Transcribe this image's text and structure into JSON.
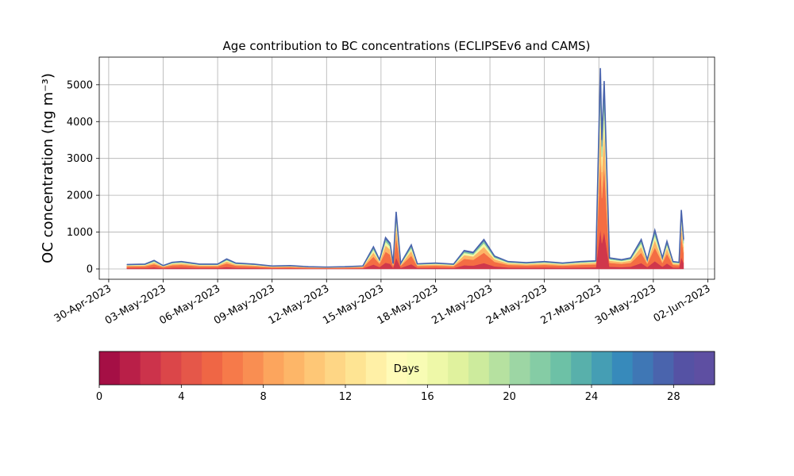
{
  "chart_data": {
    "type": "stacked_area",
    "title": "Age contribution to BC concentrations (ECLIPSEv6 and CAMS)",
    "y_label": "OC concentration (ng m⁻³)",
    "x": [
      "2023-05-01T00:00",
      "2023-05-02T00:00",
      "2023-05-02T12:00",
      "2023-05-03T00:00",
      "2023-05-03T12:00",
      "2023-05-04T00:00",
      "2023-05-05T00:00",
      "2023-05-06T00:00",
      "2023-05-06T12:00",
      "2023-05-07T00:00",
      "2023-05-08T00:00",
      "2023-05-09T00:00",
      "2023-05-10T00:00",
      "2023-05-11T00:00",
      "2023-05-12T00:00",
      "2023-05-13T00:00",
      "2023-05-14T00:00",
      "2023-05-14T14:00",
      "2023-05-14T22:00",
      "2023-05-15T06:00",
      "2023-05-15T12:00",
      "2023-05-15T16:00",
      "2023-05-15T20:00",
      "2023-05-16T02:00",
      "2023-05-16T16:00",
      "2023-05-17T00:00",
      "2023-05-18T00:00",
      "2023-05-19T00:00",
      "2023-05-19T14:00",
      "2023-05-20T02:00",
      "2023-05-20T16:00",
      "2023-05-21T06:00",
      "2023-05-22T00:00",
      "2023-05-23T00:00",
      "2023-05-24T00:00",
      "2023-05-25T00:00",
      "2023-05-26T00:00",
      "2023-05-26T20:00",
      "2023-05-27T02:00",
      "2023-05-27T04:00",
      "2023-05-27T07:00",
      "2023-05-27T14:00",
      "2023-05-28T06:00",
      "2023-05-28T18:00",
      "2023-05-29T08:00",
      "2023-05-29T16:00",
      "2023-05-30T02:00",
      "2023-05-30T12:00",
      "2023-05-30T18:00",
      "2023-05-31T02:00",
      "2023-05-31T10:00",
      "2023-05-31T13:00",
      "2023-05-31T16:00"
    ],
    "series": [
      {
        "color": "#d0374b",
        "values": [
          24,
          26,
          46,
          18,
          36,
          40,
          26,
          26,
          54,
          32,
          26,
          16,
          18,
          12,
          10,
          12,
          16,
          120,
          50,
          170,
          140,
          30,
          310,
          30,
          130,
          28,
          32,
          26,
          100,
          90,
          160,
          70,
          40,
          34,
          40,
          32,
          40,
          44,
          1090,
          700,
          1020,
          60,
          50,
          60,
          160,
          50,
          210,
          60,
          150,
          40,
          36,
          320,
          160
        ]
      },
      {
        "color": "#f46d43",
        "values": [
          42,
          46,
          81,
          32,
          63,
          70,
          46,
          46,
          95,
          56,
          46,
          28,
          32,
          21,
          18,
          21,
          28,
          210,
          88,
          298,
          245,
          53,
          543,
          53,
          228,
          49,
          56,
          46,
          175,
          158,
          280,
          123,
          70,
          60,
          70,
          56,
          70,
          77,
          1908,
          1225,
          1785,
          105,
          88,
          105,
          280,
          88,
          368,
          105,
          263,
          70,
          63,
          560,
          280
        ]
      },
      {
        "color": "#fdb466",
        "values": [
          24,
          26,
          46,
          18,
          36,
          40,
          26,
          26,
          54,
          32,
          26,
          16,
          18,
          12,
          10,
          12,
          16,
          120,
          50,
          170,
          140,
          30,
          310,
          30,
          130,
          28,
          32,
          26,
          100,
          90,
          160,
          70,
          40,
          34,
          40,
          32,
          40,
          44,
          1090,
          700,
          1020,
          60,
          50,
          60,
          160,
          50,
          210,
          60,
          150,
          40,
          36,
          320,
          160
        ]
      },
      {
        "color": "#f2f8a6",
        "values": [
          14,
          16,
          28,
          11,
          22,
          24,
          16,
          16,
          32,
          19,
          16,
          10,
          11,
          7,
          6,
          7,
          10,
          72,
          30,
          102,
          84,
          18,
          186,
          18,
          78,
          17,
          19,
          16,
          60,
          54,
          96,
          42,
          24,
          20,
          24,
          19,
          24,
          26,
          654,
          420,
          612,
          36,
          30,
          36,
          96,
          30,
          126,
          36,
          90,
          24,
          22,
          192,
          96
        ]
      },
      {
        "color": "#7fc9a5",
        "values": [
          10,
          10,
          18,
          7,
          14,
          16,
          10,
          10,
          22,
          13,
          10,
          6,
          7,
          5,
          4,
          5,
          6,
          48,
          20,
          68,
          56,
          12,
          124,
          12,
          52,
          11,
          13,
          10,
          40,
          36,
          64,
          28,
          16,
          14,
          16,
          13,
          16,
          18,
          436,
          280,
          408,
          24,
          20,
          24,
          64,
          20,
          84,
          24,
          60,
          16,
          14,
          128,
          64
        ]
      },
      {
        "color": "#4a64ad",
        "values": [
          6,
          7,
          12,
          5,
          9,
          10,
          7,
          7,
          14,
          8,
          7,
          4,
          5,
          3,
          3,
          3,
          4,
          30,
          13,
          43,
          35,
          8,
          78,
          8,
          33,
          7,
          8,
          7,
          25,
          23,
          40,
          18,
          10,
          9,
          10,
          8,
          10,
          11,
          273,
          175,
          255,
          15,
          13,
          15,
          40,
          13,
          53,
          15,
          38,
          10,
          9,
          80,
          40
        ]
      }
    ],
    "xlim": [
      "2023-04-29T11:30",
      "2023-06-02T09:00"
    ],
    "xticks": [
      {
        "value": "2023-04-30",
        "label": "30-Apr-2023"
      },
      {
        "value": "2023-05-03",
        "label": "03-May-2023"
      },
      {
        "value": "2023-05-06",
        "label": "06-May-2023"
      },
      {
        "value": "2023-05-09",
        "label": "09-May-2023"
      },
      {
        "value": "2023-05-12",
        "label": "12-May-2023"
      },
      {
        "value": "2023-05-15",
        "label": "15-May-2023"
      },
      {
        "value": "2023-05-18",
        "label": "18-May-2023"
      },
      {
        "value": "2023-05-21",
        "label": "21-May-2023"
      },
      {
        "value": "2023-05-24",
        "label": "24-May-2023"
      },
      {
        "value": "2023-05-27",
        "label": "27-May-2023"
      },
      {
        "value": "2023-05-30",
        "label": "30-May-2023"
      },
      {
        "value": "2023-06-02",
        "label": "02-Jun-2023"
      }
    ],
    "ylim": [
      -280,
      5750
    ],
    "yticks": [
      0,
      1000,
      2000,
      3000,
      4000,
      5000
    ],
    "grid": true,
    "colorbar": {
      "label": "Days",
      "lim": [
        0,
        30
      ],
      "ticks": [
        0,
        4,
        8,
        12,
        16,
        20,
        24,
        28
      ],
      "colors": [
        "#a50f45",
        "#b91f48",
        "#cc334b",
        "#db4649",
        "#e55749",
        "#ef6645",
        "#f67a4a",
        "#f98e52",
        "#fca55d",
        "#fdb668",
        "#fec776",
        "#fed685",
        "#fee493",
        "#fff0a6",
        "#fffbb8",
        "#f8fcb4",
        "#eef8a8",
        "#e0f29e",
        "#cdeb9d",
        "#b6e1a0",
        "#9dd6a4",
        "#85cca5",
        "#6dc1a6",
        "#58b0ab",
        "#459eb4",
        "#378abb",
        "#3f77b5",
        "#4a64ad",
        "#5552a4",
        "#5e4fa2"
      ]
    }
  }
}
